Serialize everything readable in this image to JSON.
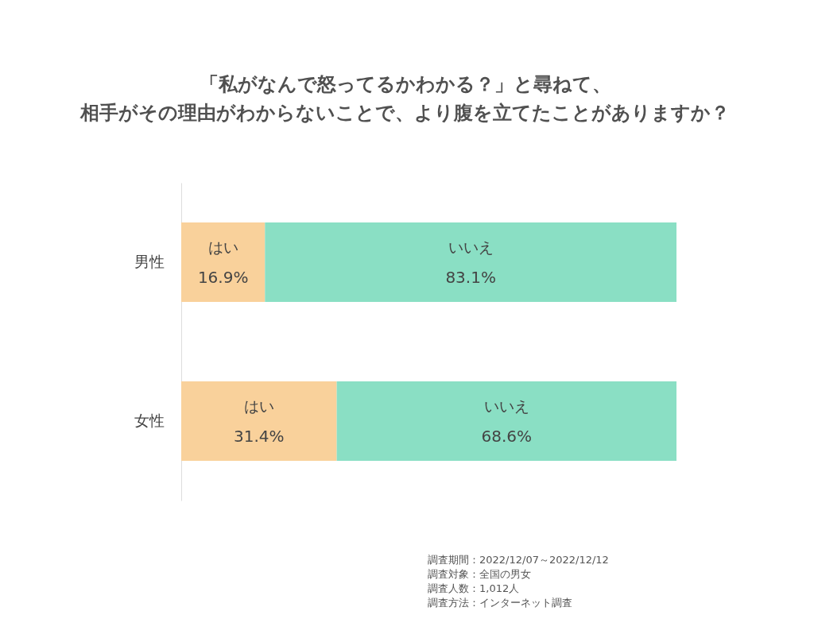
{
  "chart_data": {
    "type": "bar",
    "orientation": "horizontal",
    "stacked": true,
    "title": "「私がなんで怒ってるかわかる？」と尋ねて、相手がその理由がわからないことで、より腹を立てたことがありますか？",
    "categories": [
      "男性",
      "女性"
    ],
    "series": [
      {
        "name": "はい",
        "color": "#f9d19b",
        "values": [
          16.9,
          31.4
        ],
        "value_labels": [
          "16.9%",
          "31.4%"
        ]
      },
      {
        "name": "いいえ",
        "color": "#8adfc4",
        "values": [
          83.1,
          68.6
        ],
        "value_labels": [
          "83.1%",
          "68.6%"
        ]
      }
    ],
    "grid": false,
    "legend": false,
    "tick_labels": "y",
    "annotations": [
      "調査期間：2022/12/07～2022/12/12",
      "調査対象：全国の男女",
      "調査人数：1,012人",
      "調査方法：インターネット調査"
    ]
  }
}
